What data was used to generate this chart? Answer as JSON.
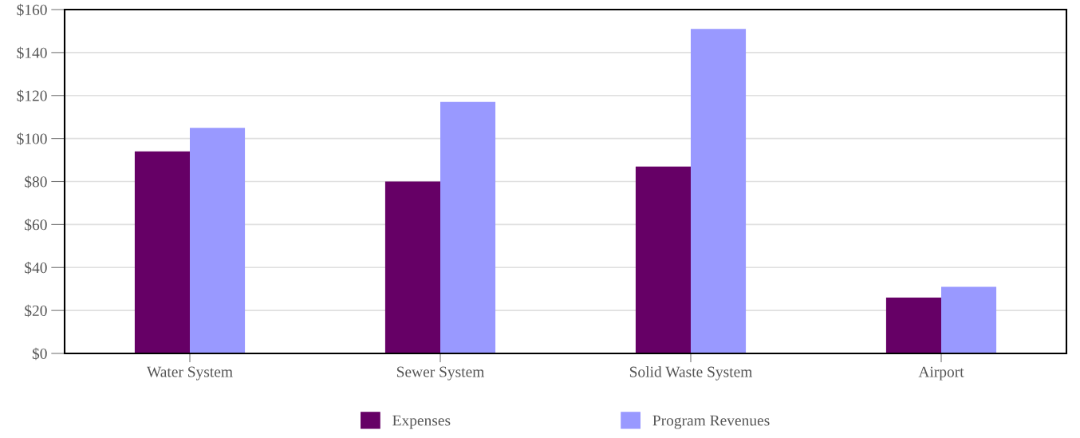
{
  "chart_data": {
    "type": "bar",
    "categories": [
      "Water System",
      "Sewer System",
      "Solid Waste System",
      "Airport"
    ],
    "series": [
      {
        "name": "Expenses",
        "color": "#660066",
        "values": [
          94,
          80,
          87,
          26
        ]
      },
      {
        "name": "Program Revenues",
        "color": "#9999ff",
        "values": [
          105,
          117,
          151,
          31
        ]
      }
    ],
    "ylim": [
      0,
      160
    ],
    "yticks": [
      {
        "value": 0,
        "label": "$0"
      },
      {
        "value": 20,
        "label": "$20"
      },
      {
        "value": 40,
        "label": "$40"
      },
      {
        "value": 60,
        "label": "$60"
      },
      {
        "value": 80,
        "label": "$80"
      },
      {
        "value": 100,
        "label": "$100"
      },
      {
        "value": 120,
        "label": "$120"
      },
      {
        "value": 140,
        "label": "$140"
      },
      {
        "value": 160,
        "label": "$160"
      }
    ],
    "grid": "y",
    "legend": "bottom"
  }
}
